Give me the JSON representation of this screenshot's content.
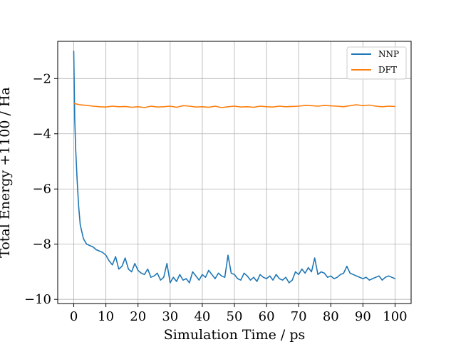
{
  "chart_data": {
    "type": "line",
    "xlabel": "Simulation Time / ps",
    "ylabel": "Total Energy +1100 / Ha",
    "xlim": [
      -5,
      105
    ],
    "ylim": [
      -10.15,
      -0.65
    ],
    "xticks": [
      0,
      10,
      20,
      30,
      40,
      50,
      60,
      70,
      80,
      90,
      100
    ],
    "yticks": [
      -2,
      -4,
      -6,
      -8,
      -10
    ],
    "ytick_labels": [
      "−2",
      "−4",
      "−6",
      "−8",
      "−10"
    ],
    "grid": true,
    "legend_position": "top-right",
    "series": [
      {
        "name": "NNP",
        "color": "#1f77b4",
        "x": [
          0,
          0.3,
          0.6,
          1,
          1.5,
          2,
          3,
          4,
          5,
          6,
          7,
          8,
          9,
          10,
          11,
          12,
          13,
          14,
          15,
          16,
          17,
          18,
          19,
          20,
          21,
          22,
          23,
          24,
          25,
          26,
          27,
          28,
          29,
          30,
          31,
          32,
          33,
          34,
          35,
          36,
          37,
          38,
          39,
          40,
          41,
          42,
          43,
          44,
          45,
          46,
          47,
          48,
          49,
          50,
          51,
          52,
          53,
          54,
          55,
          56,
          57,
          58,
          59,
          60,
          61,
          62,
          63,
          64,
          65,
          66,
          67,
          68,
          69,
          70,
          71,
          72,
          73,
          74,
          75,
          76,
          77,
          78,
          79,
          80,
          81,
          82,
          83,
          84,
          85,
          86,
          87,
          88,
          89,
          90,
          91,
          92,
          93,
          94,
          95,
          96,
          97,
          98,
          99,
          100
        ],
        "y": [
          -1.0,
          -3.5,
          -4.6,
          -5.6,
          -6.6,
          -7.3,
          -7.8,
          -8.0,
          -8.05,
          -8.1,
          -8.2,
          -8.25,
          -8.3,
          -8.4,
          -8.6,
          -8.75,
          -8.45,
          -8.9,
          -8.8,
          -8.5,
          -8.9,
          -9.0,
          -8.7,
          -8.95,
          -9.05,
          -9.1,
          -8.9,
          -9.2,
          -9.15,
          -9.05,
          -9.3,
          -9.2,
          -8.7,
          -9.4,
          -9.2,
          -9.35,
          -9.1,
          -9.3,
          -9.25,
          -9.4,
          -9.0,
          -9.15,
          -9.3,
          -9.1,
          -9.2,
          -8.95,
          -9.1,
          -9.25,
          -9.05,
          -9.15,
          -9.2,
          -8.4,
          -9.05,
          -9.1,
          -9.25,
          -9.3,
          -9.05,
          -9.15,
          -9.3,
          -9.2,
          -9.35,
          -9.1,
          -9.2,
          -9.25,
          -9.15,
          -9.3,
          -9.1,
          -9.25,
          -9.3,
          -9.2,
          -9.4,
          -9.3,
          -9.0,
          -9.1,
          -8.9,
          -9.05,
          -8.85,
          -9.0,
          -8.5,
          -9.1,
          -9.0,
          -9.05,
          -9.2,
          -9.15,
          -9.25,
          -9.2,
          -9.1,
          -9.05,
          -8.8,
          -9.05,
          -9.1,
          -9.15,
          -9.2,
          -9.25,
          -9.2,
          -9.3,
          -9.25,
          -9.2,
          -9.15,
          -9.3,
          -9.2,
          -9.15,
          -9.2,
          -9.25
        ]
      },
      {
        "name": "DFT",
        "color": "#ff7f0e",
        "x": [
          0,
          2,
          4,
          6,
          8,
          10,
          12,
          14,
          16,
          18,
          20,
          22,
          24,
          26,
          28,
          30,
          32,
          34,
          36,
          38,
          40,
          42,
          44,
          46,
          48,
          50,
          52,
          54,
          56,
          58,
          60,
          62,
          64,
          66,
          68,
          70,
          72,
          74,
          76,
          78,
          80,
          82,
          84,
          86,
          88,
          90,
          92,
          94,
          96,
          98,
          100
        ],
        "y": [
          -2.9,
          -2.95,
          -2.97,
          -3.0,
          -3.02,
          -3.03,
          -3.0,
          -3.02,
          -3.01,
          -3.04,
          -3.02,
          -3.05,
          -3.0,
          -3.03,
          -3.02,
          -3.0,
          -3.04,
          -2.98,
          -3.0,
          -3.03,
          -3.02,
          -3.04,
          -3.0,
          -3.05,
          -3.02,
          -3.0,
          -3.03,
          -3.02,
          -3.04,
          -3.0,
          -3.02,
          -3.03,
          -3.0,
          -3.02,
          -3.01,
          -3.0,
          -2.97,
          -2.98,
          -3.0,
          -2.97,
          -2.99,
          -3.0,
          -3.02,
          -2.98,
          -2.95,
          -2.98,
          -2.96,
          -3.0,
          -3.02,
          -3.0,
          -3.01
        ]
      }
    ]
  }
}
